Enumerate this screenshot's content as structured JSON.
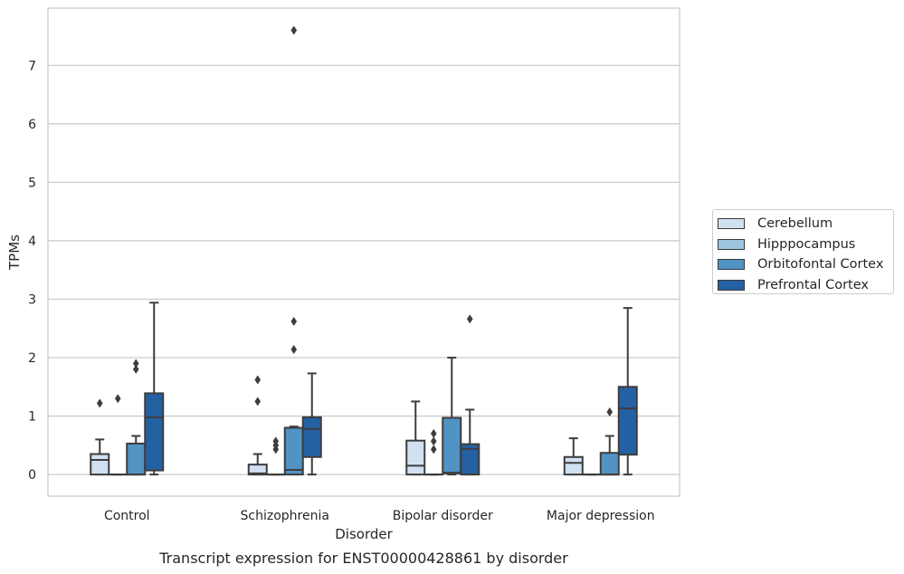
{
  "chart_data": {
    "type": "box",
    "title": "",
    "caption": "Transcript expression for ENST00000428861 by disorder",
    "xlabel": "Disorder",
    "ylabel": "TPMs",
    "ylim": [
      -0.37,
      7.98
    ],
    "yticks": [
      0,
      1,
      2,
      3,
      4,
      5,
      6,
      7
    ],
    "grid": "horizontal",
    "legend_position": "right",
    "categories": [
      "Control",
      "Schizophrenia",
      "Bipolar disorder",
      "Major depression"
    ],
    "series": [
      {
        "name": "Cerebellum",
        "color": "#d1e1f1",
        "boxes": [
          {
            "q1": 0.0,
            "median": 0.25,
            "q3": 0.35,
            "whislo": 0.0,
            "whishi": 0.6,
            "fliers": [
              1.22
            ]
          },
          {
            "q1": 0.0,
            "median": 0.02,
            "q3": 0.17,
            "whislo": 0.0,
            "whishi": 0.35,
            "fliers": [
              1.25,
              1.62
            ]
          },
          {
            "q1": 0.0,
            "median": 0.15,
            "q3": 0.58,
            "whislo": 0.0,
            "whishi": 1.25,
            "fliers": []
          },
          {
            "q1": 0.0,
            "median": 0.2,
            "q3": 0.3,
            "whislo": 0.0,
            "whishi": 0.62,
            "fliers": []
          }
        ]
      },
      {
        "name": "Hipppocampus",
        "color": "#9dc4df",
        "boxes": [
          {
            "q1": 0.0,
            "median": 0.0,
            "q3": 0.0,
            "whislo": 0.0,
            "whishi": 0.0,
            "fliers": [
              1.3
            ]
          },
          {
            "q1": 0.0,
            "median": 0.0,
            "q3": 0.0,
            "whislo": 0.0,
            "whishi": 0.0,
            "fliers": [
              0.43,
              0.5,
              0.57
            ]
          },
          {
            "q1": 0.0,
            "median": 0.0,
            "q3": 0.0,
            "whislo": 0.0,
            "whishi": 0.0,
            "fliers": [
              0.43,
              0.57,
              0.7
            ]
          },
          {
            "q1": 0.0,
            "median": 0.0,
            "q3": 0.0,
            "whislo": 0.0,
            "whishi": 0.0,
            "fliers": []
          }
        ]
      },
      {
        "name": "Orbitofontal Cortex",
        "color": "#5193c3",
        "boxes": [
          {
            "q1": 0.0,
            "median": 0.0,
            "q3": 0.53,
            "whislo": 0.0,
            "whishi": 0.66,
            "fliers": [
              1.8,
              1.9
            ]
          },
          {
            "q1": 0.0,
            "median": 0.08,
            "q3": 0.8,
            "whislo": 0.0,
            "whishi": 0.82,
            "fliers": [
              2.14,
              2.62,
              7.6
            ]
          },
          {
            "q1": 0.02,
            "median": 0.03,
            "q3": 0.97,
            "whislo": 0.0,
            "whishi": 2.0,
            "fliers": []
          },
          {
            "q1": 0.0,
            "median": 0.0,
            "q3": 0.37,
            "whislo": 0.0,
            "whishi": 0.66,
            "fliers": [
              1.07
            ]
          }
        ]
      },
      {
        "name": "Prefrontal Cortex",
        "color": "#2461a3",
        "boxes": [
          {
            "q1": 0.07,
            "median": 0.98,
            "q3": 1.39,
            "whislo": 0.0,
            "whishi": 2.94,
            "fliers": []
          },
          {
            "q1": 0.3,
            "median": 0.78,
            "q3": 0.98,
            "whislo": 0.0,
            "whishi": 1.73,
            "fliers": []
          },
          {
            "q1": 0.0,
            "median": 0.44,
            "q3": 0.52,
            "whislo": 0.0,
            "whishi": 1.11,
            "fliers": [
              2.66
            ]
          },
          {
            "q1": 0.34,
            "median": 1.13,
            "q3": 1.5,
            "whislo": 0.0,
            "whishi": 2.85,
            "fliers": []
          }
        ]
      }
    ]
  }
}
